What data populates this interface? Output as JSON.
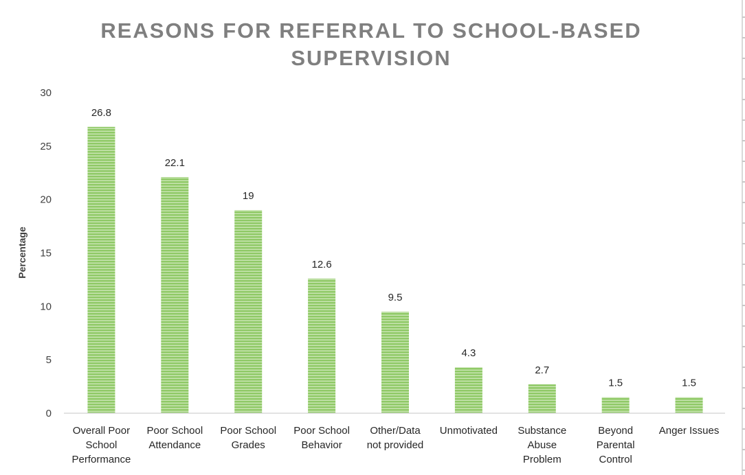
{
  "chart_data": {
    "type": "bar",
    "title": [
      "REASONS FOR REFERRAL TO SCHOOL-BASED",
      "SUPERVISION"
    ],
    "xlabel": "",
    "ylabel": "Percentage",
    "ylim": [
      0,
      30
    ],
    "yticks": [
      "0",
      "5",
      "10",
      "15",
      "20",
      "25",
      "30"
    ],
    "grid": false,
    "legend": "none",
    "bar_color": "#8fc966",
    "categories": [
      [
        "Overall Poor",
        "School",
        "Performance"
      ],
      [
        "Poor School",
        "Attendance"
      ],
      [
        "Poor School",
        "Grades"
      ],
      [
        "Poor School",
        "Behavior"
      ],
      [
        "Other/Data",
        "not provided"
      ],
      [
        "Unmotivated"
      ],
      [
        "Substance",
        "Abuse",
        "Problem"
      ],
      [
        "Beyond",
        "Parental",
        "Control"
      ],
      [
        "Anger Issues"
      ]
    ],
    "values": [
      26.8,
      22.1,
      19,
      12.6,
      9.5,
      4.3,
      2.7,
      1.5,
      1.5
    ],
    "data_labels": [
      "26.8",
      "22.1",
      "19",
      "12.6",
      "9.5",
      "4.3",
      "2.7",
      "1.5",
      "1.5"
    ]
  }
}
